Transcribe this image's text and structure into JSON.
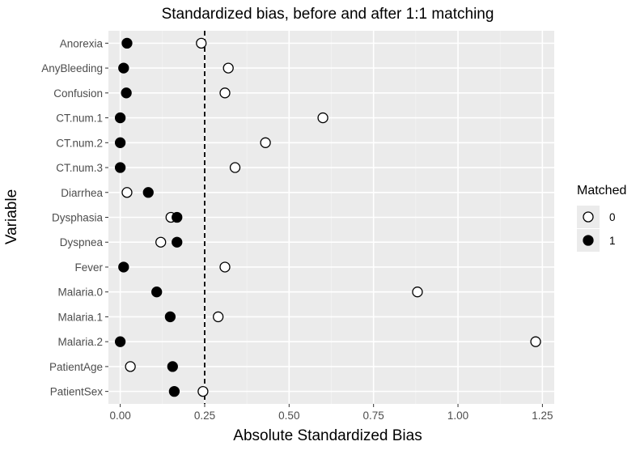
{
  "chart_data": {
    "type": "scatter",
    "title": "Standardized bias, before and after 1:1 matching",
    "xlabel": "Absolute Standardized Bias",
    "ylabel": "Variable",
    "xlim": [
      -0.035,
      1.285
    ],
    "xticks": [
      0.0,
      0.25,
      0.5,
      0.75,
      1.0,
      1.25
    ],
    "xtick_labels": [
      "0.00",
      "0.25",
      "0.50",
      "0.75",
      "1.00",
      "1.25"
    ],
    "reference_line": {
      "x": 0.25,
      "style": "dashed"
    },
    "grid": true,
    "legend": {
      "title": "Matched",
      "position": "right",
      "entries": [
        {
          "label": "0",
          "marker": "open-circle"
        },
        {
          "label": "1",
          "marker": "filled-circle"
        }
      ]
    },
    "categories": [
      "Anorexia",
      "AnyBleeding",
      "Confusion",
      "CT.num.1",
      "CT.num.2",
      "CT.num.3",
      "Diarrhea",
      "Dysphasia",
      "Dyspnea",
      "Fever",
      "Malaria.0",
      "Malaria.1",
      "Malaria.2",
      "PatientAge",
      "PatientSex"
    ],
    "series": [
      {
        "name": "0",
        "marker": "open-circle",
        "values": [
          0.24,
          0.32,
          0.31,
          0.6,
          0.43,
          0.34,
          0.02,
          0.15,
          0.12,
          0.31,
          0.88,
          0.29,
          1.23,
          0.03,
          0.245
        ]
      },
      {
        "name": "1",
        "marker": "filled-circle",
        "values": [
          0.02,
          0.01,
          0.018,
          0.0,
          0.0,
          0.0,
          0.083,
          0.168,
          0.168,
          0.01,
          0.108,
          0.148,
          0.0,
          0.155,
          0.16
        ]
      }
    ],
    "colors": {
      "panel": "#ebebeb",
      "grid_major": "#ffffff",
      "grid_minor": "#f4f4f4",
      "text": "#4d4d4d",
      "marker": "#000000"
    }
  }
}
